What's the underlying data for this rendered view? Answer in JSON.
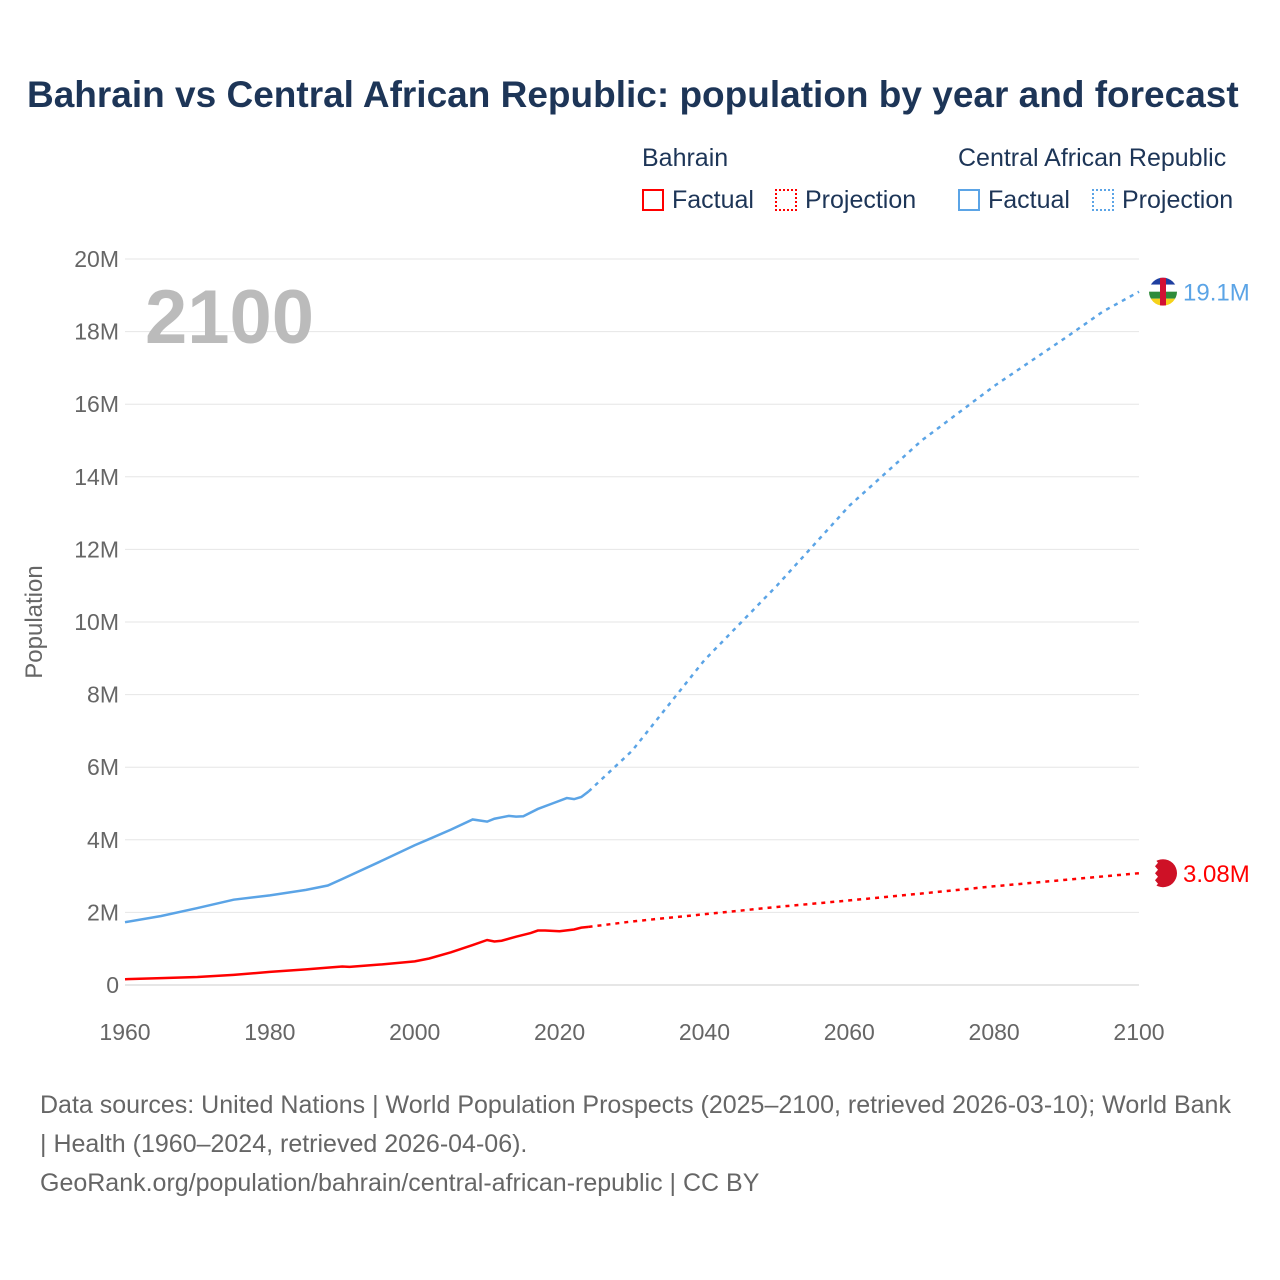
{
  "chart_data": {
    "type": "line",
    "title": "Bahrain vs Central African Republic: population by year and forecast",
    "ylabel": "Population",
    "xlim": [
      1960,
      2100
    ],
    "ylim": [
      0,
      20000000
    ],
    "xticks": [
      1960,
      1980,
      2000,
      2020,
      2040,
      2060,
      2080,
      2100
    ],
    "xtick_labels": [
      "1960",
      "1980",
      "2000",
      "2020",
      "2040",
      "2060",
      "2080",
      "2100"
    ],
    "yticks": [
      0,
      2000000,
      4000000,
      6000000,
      8000000,
      10000000,
      12000000,
      14000000,
      16000000,
      18000000,
      20000000
    ],
    "ytick_labels": [
      "0",
      "2M",
      "4M",
      "6M",
      "8M",
      "10M",
      "12M",
      "14M",
      "16M",
      "18M",
      "20M"
    ],
    "year_label": "2100",
    "grid": true,
    "legend": {
      "placement": "top-right",
      "groups": [
        {
          "name": "Bahrain",
          "factual": "Factual",
          "projection": "Projection",
          "color": "#ff0000"
        },
        {
          "name": "Central African Republic",
          "factual": "Factual",
          "projection": "Projection",
          "color": "#5ba4e6"
        }
      ]
    },
    "series": [
      {
        "name": "Bahrain",
        "color": "#ff0000",
        "end_label": "3.08M",
        "factual": {
          "x": [
            1960,
            1965,
            1970,
            1975,
            1980,
            1985,
            1988,
            1990,
            1991,
            1995,
            2000,
            2002,
            2005,
            2008,
            2010,
            2011,
            2012,
            2014,
            2016,
            2017,
            2018,
            2020,
            2022,
            2023,
            2024
          ],
          "y": [
            0.16,
            0.19,
            0.22,
            0.28,
            0.36,
            0.43,
            0.48,
            0.51,
            0.5,
            0.56,
            0.65,
            0.73,
            0.9,
            1.1,
            1.24,
            1.2,
            1.22,
            1.33,
            1.43,
            1.5,
            1.5,
            1.48,
            1.53,
            1.58,
            1.6
          ]
        },
        "projection": {
          "x": [
            2024,
            2030,
            2040,
            2050,
            2060,
            2070,
            2080,
            2090,
            2100
          ],
          "y": [
            1.6,
            1.75,
            1.95,
            2.15,
            2.33,
            2.52,
            2.72,
            2.9,
            3.08
          ]
        }
      },
      {
        "name": "Central African Republic",
        "color": "#5ba4e6",
        "end_label": "19.1M",
        "factual": {
          "x": [
            1960,
            1965,
            1970,
            1975,
            1980,
            1985,
            1988,
            1990,
            1995,
            2000,
            2002,
            2005,
            2008,
            2010,
            2011,
            2012,
            2013,
            2014,
            2015,
            2017,
            2019,
            2021,
            2022,
            2023,
            2024
          ],
          "y": [
            1.73,
            1.9,
            2.12,
            2.35,
            2.47,
            2.62,
            2.74,
            2.92,
            3.38,
            3.85,
            4.02,
            4.28,
            4.56,
            4.5,
            4.58,
            4.62,
            4.66,
            4.64,
            4.65,
            4.85,
            5.0,
            5.15,
            5.12,
            5.18,
            5.33
          ]
        },
        "projection": {
          "x": [
            2024,
            2030,
            2040,
            2050,
            2060,
            2070,
            2080,
            2090,
            2095,
            2100
          ],
          "y": [
            5.33,
            6.45,
            8.95,
            11.0,
            13.2,
            15.0,
            16.5,
            17.85,
            18.55,
            19.1
          ]
        }
      }
    ]
  },
  "footer": {
    "line1": "Data sources: United Nations | World Population Prospects (2025–2100, retrieved 2026-03-10); World Bank | Health (1960–2024, retrieved 2026-04-06).",
    "line2": "GeoRank.org/population/bahrain/central-african-republic | CC BY"
  }
}
